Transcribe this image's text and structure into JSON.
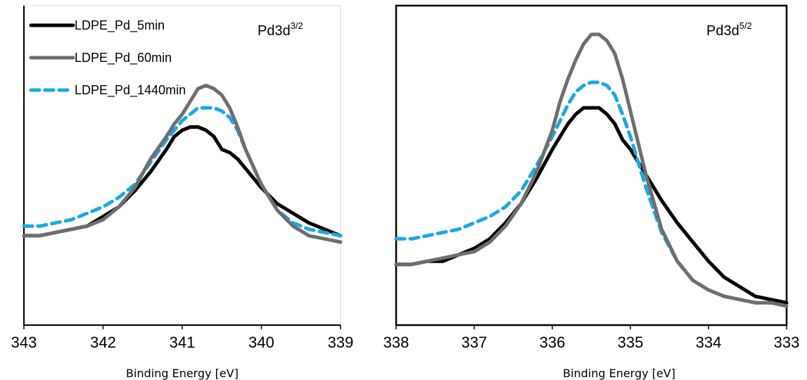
{
  "chart_data": [
    {
      "type": "line",
      "title": "Pd3d",
      "title_sup": "3/2",
      "xlabel": "Binding Energy [eV]",
      "ylabel": "",
      "xlim": [
        343,
        339
      ],
      "x_reversed": true,
      "ylim": [
        0,
        1
      ],
      "xticks": [
        "343",
        "342",
        "341",
        "340",
        "339"
      ],
      "grid": false,
      "y_ticks_shown": false,
      "legend_position": "top-left",
      "series": [
        {
          "name": "LDPE_Pd_5min",
          "color": "#000000",
          "dash": "solid",
          "x": [
            343,
            342.8,
            342.6,
            342.4,
            342.2,
            342.0,
            341.8,
            341.6,
            341.4,
            341.2,
            341.1,
            341.0,
            340.9,
            340.8,
            340.7,
            340.6,
            340.5,
            340.4,
            340.3,
            340.2,
            340.0,
            339.8,
            339.6,
            339.4,
            339.2,
            339.0
          ],
          "values": [
            0.28,
            0.28,
            0.29,
            0.3,
            0.31,
            0.34,
            0.37,
            0.42,
            0.48,
            0.55,
            0.59,
            0.61,
            0.62,
            0.62,
            0.61,
            0.59,
            0.55,
            0.54,
            0.52,
            0.49,
            0.43,
            0.38,
            0.35,
            0.32,
            0.3,
            0.28
          ]
        },
        {
          "name": "LDPE_Pd_60min",
          "color": "#6e6e6e",
          "dash": "solid",
          "x": [
            343,
            342.8,
            342.6,
            342.4,
            342.2,
            342.0,
            341.8,
            341.6,
            341.4,
            341.2,
            341.1,
            341.0,
            340.9,
            340.8,
            340.7,
            340.6,
            340.5,
            340.4,
            340.3,
            340.2,
            340.0,
            339.8,
            339.6,
            339.4,
            339.2,
            339.0
          ],
          "values": [
            0.28,
            0.28,
            0.29,
            0.3,
            0.31,
            0.33,
            0.37,
            0.43,
            0.52,
            0.59,
            0.63,
            0.66,
            0.7,
            0.74,
            0.75,
            0.74,
            0.72,
            0.68,
            0.62,
            0.55,
            0.44,
            0.36,
            0.31,
            0.28,
            0.27,
            0.26
          ]
        },
        {
          "name": "LDPE_Pd_1440min",
          "color": "#1aa9e6",
          "dash": "dashed",
          "x": [
            343,
            342.8,
            342.6,
            342.4,
            342.2,
            342.0,
            341.8,
            341.6,
            341.4,
            341.2,
            341.1,
            341.0,
            340.9,
            340.8,
            340.7,
            340.6,
            340.5,
            340.4,
            340.3,
            340.2,
            340.0,
            339.8,
            339.6,
            339.4,
            339.2,
            339.0
          ],
          "values": [
            0.31,
            0.31,
            0.32,
            0.33,
            0.35,
            0.37,
            0.4,
            0.44,
            0.51,
            0.58,
            0.61,
            0.64,
            0.66,
            0.68,
            0.68,
            0.68,
            0.67,
            0.65,
            0.61,
            0.55,
            0.44,
            0.36,
            0.32,
            0.3,
            0.29,
            0.28
          ]
        }
      ]
    },
    {
      "type": "line",
      "title": "Pd3d",
      "title_sup": "5/2",
      "xlabel": "Binding Energy [eV]",
      "ylabel": "",
      "xlim": [
        338,
        333
      ],
      "x_reversed": true,
      "ylim": [
        0,
        1
      ],
      "xticks": [
        "338",
        "337",
        "336",
        "335",
        "334",
        "333"
      ],
      "grid": false,
      "y_ticks_shown": false,
      "legend_position": "none",
      "series": [
        {
          "name": "LDPE_Pd_5min",
          "color": "#000000",
          "dash": "solid",
          "x": [
            338,
            337.8,
            337.6,
            337.4,
            337.2,
            337.0,
            336.8,
            336.6,
            336.4,
            336.2,
            336.0,
            335.9,
            335.8,
            335.7,
            335.6,
            335.5,
            335.4,
            335.3,
            335.2,
            335.1,
            335.0,
            334.8,
            334.6,
            334.4,
            334.2,
            334.0,
            333.8,
            333.6,
            333.4,
            333.2,
            333.0
          ],
          "values": [
            0.19,
            0.19,
            0.2,
            0.2,
            0.22,
            0.24,
            0.27,
            0.32,
            0.38,
            0.46,
            0.55,
            0.59,
            0.63,
            0.66,
            0.68,
            0.68,
            0.68,
            0.66,
            0.63,
            0.58,
            0.55,
            0.47,
            0.39,
            0.32,
            0.26,
            0.2,
            0.15,
            0.12,
            0.09,
            0.08,
            0.07
          ]
        },
        {
          "name": "LDPE_Pd_60min",
          "color": "#6e6e6e",
          "dash": "solid",
          "x": [
            338,
            337.8,
            337.6,
            337.4,
            337.2,
            337.0,
            336.8,
            336.6,
            336.4,
            336.2,
            336.0,
            335.9,
            335.8,
            335.7,
            335.6,
            335.5,
            335.4,
            335.3,
            335.2,
            335.1,
            335.0,
            334.8,
            334.6,
            334.4,
            334.2,
            334.0,
            333.8,
            333.6,
            333.4,
            333.2,
            333.0
          ],
          "values": [
            0.19,
            0.19,
            0.2,
            0.21,
            0.22,
            0.23,
            0.26,
            0.31,
            0.38,
            0.48,
            0.61,
            0.7,
            0.77,
            0.83,
            0.88,
            0.91,
            0.91,
            0.89,
            0.85,
            0.77,
            0.67,
            0.47,
            0.3,
            0.2,
            0.14,
            0.11,
            0.09,
            0.08,
            0.07,
            0.07,
            0.06
          ]
        },
        {
          "name": "LDPE_Pd_1440min",
          "color": "#1aa9e6",
          "dash": "dashed",
          "x": [
            338,
            337.8,
            337.6,
            337.4,
            337.2,
            337.0,
            336.8,
            336.6,
            336.4,
            336.2,
            336.0,
            335.9,
            335.8,
            335.7,
            335.6,
            335.5,
            335.4,
            335.3,
            335.2,
            335.1,
            335.0,
            334.8,
            334.6,
            334.4,
            334.2,
            334.0,
            333.8,
            333.6,
            333.4,
            333.2,
            333.0
          ],
          "values": [
            0.27,
            0.27,
            0.28,
            0.29,
            0.3,
            0.32,
            0.34,
            0.37,
            0.42,
            0.5,
            0.59,
            0.64,
            0.69,
            0.73,
            0.75,
            0.76,
            0.76,
            0.75,
            0.72,
            0.66,
            0.59,
            0.43,
            0.29,
            0.2,
            0.14,
            0.11,
            0.09,
            0.08,
            0.07,
            0.07,
            0.06
          ]
        }
      ]
    }
  ]
}
